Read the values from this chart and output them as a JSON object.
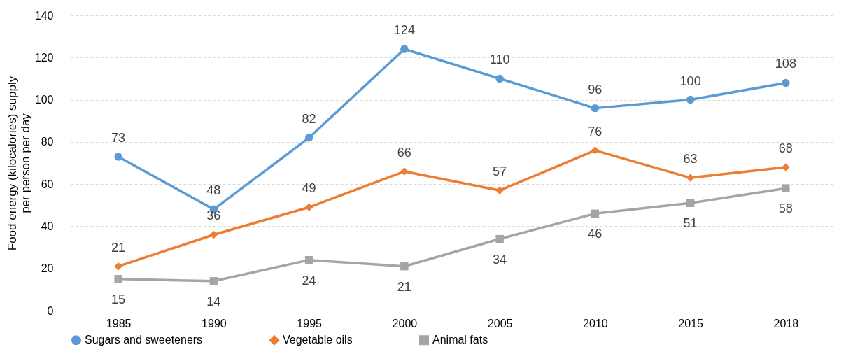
{
  "chart_data": {
    "type": "line",
    "ylabel": "Food energy (kilocalories) supply per person per day",
    "categories": [
      "1985",
      "1990",
      "1995",
      "2000",
      "2005",
      "2010",
      "2015",
      "2018"
    ],
    "series": [
      {
        "name": "Sugars and sweeteners",
        "color": "#5b9bd5",
        "marker": "circle",
        "values": [
          73,
          48,
          82,
          124,
          110,
          96,
          100,
          108
        ]
      },
      {
        "name": "Vegetable oils",
        "color": "#ed7d31",
        "marker": "diamond",
        "values": [
          21,
          36,
          49,
          66,
          57,
          76,
          63,
          68
        ]
      },
      {
        "name": "Animal fats",
        "color": "#a5a5a5",
        "marker": "square",
        "values": [
          15,
          14,
          24,
          21,
          34,
          46,
          51,
          58
        ]
      }
    ],
    "ylim": [
      0,
      140
    ],
    "yticks": [
      0,
      20,
      40,
      60,
      80,
      100,
      120,
      140
    ],
    "grid": "y",
    "legend": "bottom",
    "data_labels": true,
    "line_style": "solid"
  }
}
